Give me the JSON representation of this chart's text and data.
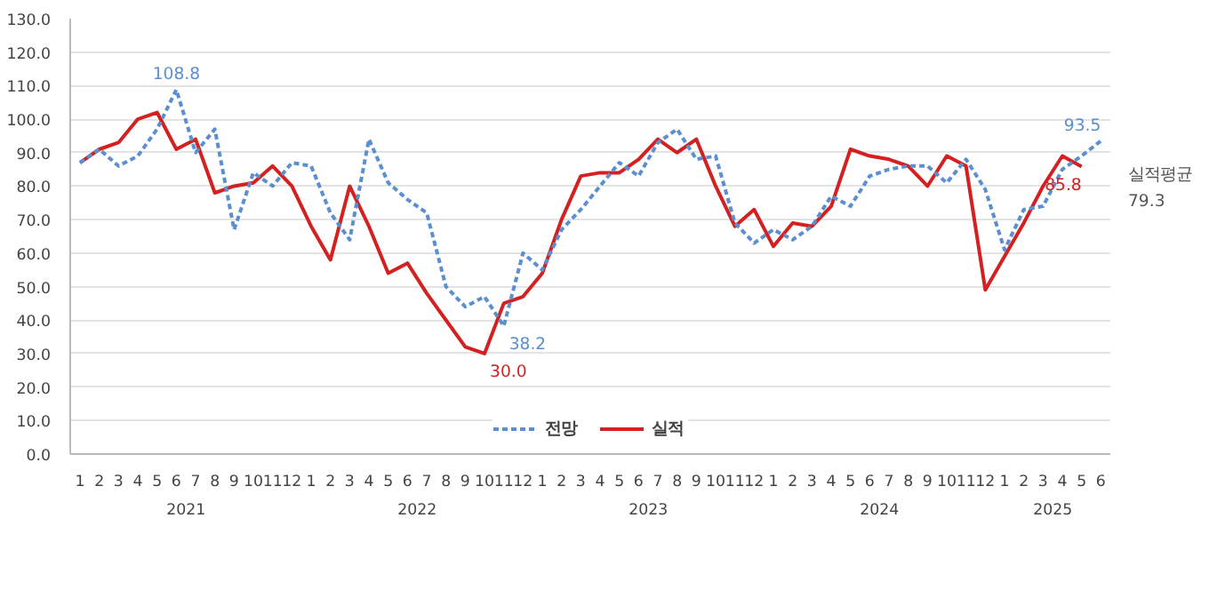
{
  "chart_data": {
    "type": "line",
    "x": [
      "2021-01",
      "2021-02",
      "2021-03",
      "2021-04",
      "2021-05",
      "2021-06",
      "2021-07",
      "2021-08",
      "2021-09",
      "2021-10",
      "2021-11",
      "2021-12",
      "2022-01",
      "2022-02",
      "2022-03",
      "2022-04",
      "2022-05",
      "2022-06",
      "2022-07",
      "2022-08",
      "2022-09",
      "2022-10",
      "2022-11",
      "2022-12",
      "2023-01",
      "2023-02",
      "2023-03",
      "2023-04",
      "2023-05",
      "2023-06",
      "2023-07",
      "2023-08",
      "2023-09",
      "2023-10",
      "2023-11",
      "2023-12",
      "2024-01",
      "2024-02",
      "2024-03",
      "2024-04",
      "2024-05",
      "2024-06",
      "2024-07",
      "2024-08",
      "2024-09",
      "2024-10",
      "2024-11",
      "2024-12",
      "2025-01",
      "2025-02",
      "2025-03",
      "2025-04",
      "2025-05",
      "2025-06"
    ],
    "series": [
      {
        "name": "전망",
        "color": "#5b8fd0",
        "line_style": "dashed",
        "values": [
          87,
          91,
          86,
          89,
          97,
          108.8,
          90,
          97,
          67,
          84,
          80,
          87,
          86,
          72,
          64,
          94,
          81,
          76,
          72,
          50,
          44,
          47,
          38.2,
          60,
          55,
          67,
          73,
          80,
          87,
          83,
          93,
          97,
          88,
          89,
          69,
          63,
          67,
          64,
          68,
          77,
          74,
          83,
          85,
          86,
          86,
          81,
          88,
          79,
          61,
          73,
          74,
          85,
          89,
          93.5
        ]
      },
      {
        "name": "실적",
        "color": "#d42020",
        "line_style": "solid",
        "values": [
          87,
          91,
          93,
          100,
          102,
          91,
          94,
          78,
          80,
          81,
          86,
          80,
          68,
          58,
          80,
          68,
          54,
          57,
          48,
          40,
          32,
          30.0,
          45,
          47,
          54,
          70,
          83,
          84,
          84,
          88,
          94,
          90,
          94,
          80,
          68,
          73,
          62,
          69,
          68,
          74,
          91,
          89,
          88,
          86,
          80,
          89,
          86,
          49,
          59,
          69,
          80,
          89,
          85.8,
          null
        ]
      }
    ],
    "xlim": [
      "2020-12-16",
      "2025-06-16"
    ],
    "xticks": [
      {
        "value": "2021-01",
        "label": "1"
      },
      {
        "value": "2021-02",
        "label": "2"
      },
      {
        "value": "2021-03",
        "label": "3"
      },
      {
        "value": "2021-04",
        "label": "4"
      },
      {
        "value": "2021-05",
        "label": "5"
      },
      {
        "value": "2021-06",
        "label": "6"
      },
      {
        "value": "2021-07",
        "label": "7"
      },
      {
        "value": "2021-08",
        "label": "8"
      },
      {
        "value": "2021-09",
        "label": "9"
      },
      {
        "value": "2021-10",
        "label": "10"
      },
      {
        "value": "2021-11",
        "label": "11"
      },
      {
        "value": "2021-12",
        "label": "12"
      },
      {
        "value": "2022-01",
        "label": "1"
      },
      {
        "value": "2022-02",
        "label": "2"
      },
      {
        "value": "2022-03",
        "label": "3"
      },
      {
        "value": "2022-04",
        "label": "4"
      },
      {
        "value": "2022-05",
        "label": "5"
      },
      {
        "value": "2022-06",
        "label": "6"
      },
      {
        "value": "2022-07",
        "label": "7"
      },
      {
        "value": "2022-08",
        "label": "8"
      },
      {
        "value": "2022-09",
        "label": "9"
      },
      {
        "value": "2022-10",
        "label": "10"
      },
      {
        "value": "2022-11",
        "label": "11"
      },
      {
        "value": "2022-12",
        "label": "12"
      },
      {
        "value": "2023-01",
        "label": "1"
      },
      {
        "value": "2023-02",
        "label": "2"
      },
      {
        "value": "2023-03",
        "label": "3"
      },
      {
        "value": "2023-04",
        "label": "4"
      },
      {
        "value": "2023-05",
        "label": "5"
      },
      {
        "value": "2023-06",
        "label": "6"
      },
      {
        "value": "2023-07",
        "label": "7"
      },
      {
        "value": "2023-08",
        "label": "8"
      },
      {
        "value": "2023-09",
        "label": "9"
      },
      {
        "value": "2023-10",
        "label": "10"
      },
      {
        "value": "2023-11",
        "label": "11"
      },
      {
        "value": "2023-12",
        "label": "12"
      },
      {
        "value": "2024-01",
        "label": "1"
      },
      {
        "value": "2024-02",
        "label": "2"
      },
      {
        "value": "2024-03",
        "label": "3"
      },
      {
        "value": "2024-04",
        "label": "4"
      },
      {
        "value": "2024-05",
        "label": "5"
      },
      {
        "value": "2024-06",
        "label": "6"
      },
      {
        "value": "2024-07",
        "label": "7"
      },
      {
        "value": "2024-08",
        "label": "8"
      },
      {
        "value": "2024-09",
        "label": "9"
      },
      {
        "value": "2024-10",
        "label": "10"
      },
      {
        "value": "2024-11",
        "label": "11"
      },
      {
        "value": "2024-12",
        "label": "12"
      },
      {
        "value": "2025-01",
        "label": "1"
      },
      {
        "value": "2025-02",
        "label": "2"
      },
      {
        "value": "2025-03",
        "label": "3"
      },
      {
        "value": "2025-04",
        "label": "4"
      },
      {
        "value": "2025-05",
        "label": "5"
      },
      {
        "value": "2025-06",
        "label": "6"
      }
    ],
    "ylim": [
      0,
      130
    ],
    "yticks": [
      {
        "value": 0,
        "label": "0.0"
      },
      {
        "value": 10,
        "label": "10.0"
      },
      {
        "value": 20,
        "label": "20.0"
      },
      {
        "value": 30,
        "label": "30.0"
      },
      {
        "value": 40,
        "label": "40.0"
      },
      {
        "value": 50,
        "label": "50.0"
      },
      {
        "value": 60,
        "label": "60.0"
      },
      {
        "value": 70,
        "label": "70.0"
      },
      {
        "value": 80,
        "label": "80.0"
      },
      {
        "value": 90,
        "label": "90.0"
      },
      {
        "value": 100,
        "label": "100.0"
      },
      {
        "value": 110,
        "label": "110.0"
      },
      {
        "value": 120,
        "label": "120.0"
      },
      {
        "value": 130,
        "label": "130.0"
      }
    ],
    "grid": "y",
    "legend": "bottom",
    "marker": "none",
    "annotations": [
      {
        "text": "108.8",
        "x": "2021-06",
        "y": 108.8
      },
      {
        "text": "38.2",
        "x": "2022-11",
        "y": 38.2
      },
      {
        "text": "30.0",
        "x": "2022-10",
        "y": 30.0
      },
      {
        "text": "93.5",
        "x": "2025-06",
        "y": 93.5
      },
      {
        "text": "85.8",
        "x": "2025-05",
        "y": 85.8
      },
      "2021",
      "2022",
      "2023",
      "2024",
      "2025",
      "실적평균",
      "79.3"
    ]
  }
}
